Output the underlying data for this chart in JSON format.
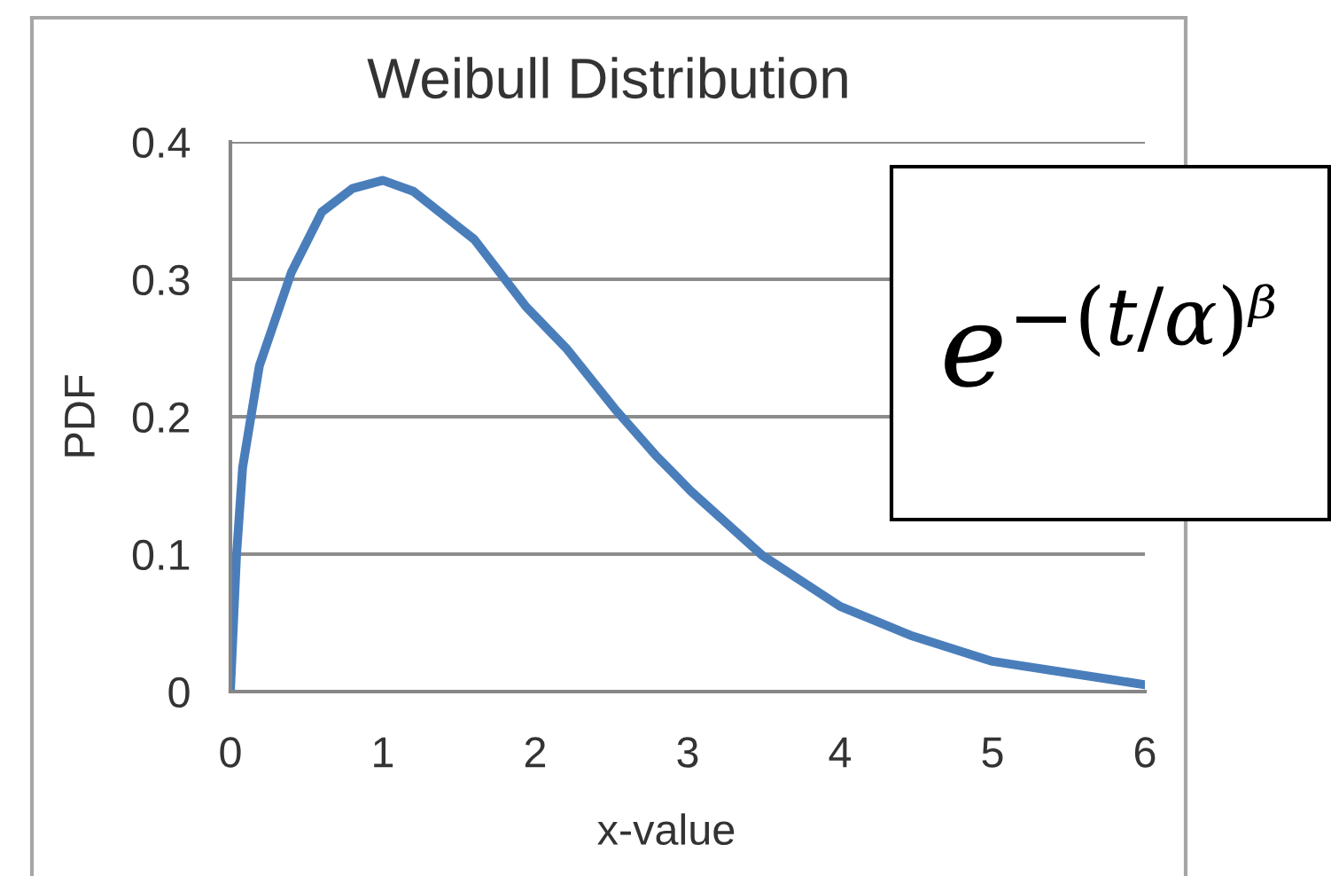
{
  "chart_data": {
    "type": "line",
    "title": "Weibull Distribution",
    "xlabel": "x-value",
    "ylabel": "PDF",
    "x": [
      0,
      0.04,
      0.08,
      0.19,
      0.4,
      0.6,
      0.8,
      1.0,
      1.2,
      1.6,
      1.94,
      2.21,
      2.52,
      2.79,
      3.02,
      3.49,
      4.0,
      4.46,
      5.0,
      6.0
    ],
    "series": [
      {
        "color": "#4a7ebb",
        "values": [
          0,
          0.099,
          0.163,
          0.237,
          0.305,
          0.349,
          0.366,
          0.372,
          0.364,
          0.329,
          0.28,
          0.249,
          0.206,
          0.172,
          0.146,
          0.099,
          0.062,
          0.041,
          0.022,
          0.005
        ]
      }
    ],
    "xlim": [
      0,
      6
    ],
    "xticks": [
      0,
      1,
      2,
      3,
      4,
      5,
      6
    ],
    "ylim": [
      0,
      0.4
    ],
    "yticks": [
      0,
      0.1,
      0.2,
      0.3,
      0.4
    ],
    "grid": "y",
    "annotations": [
      "e$^{−(t/α)ᵝ}$"
    ]
  }
}
